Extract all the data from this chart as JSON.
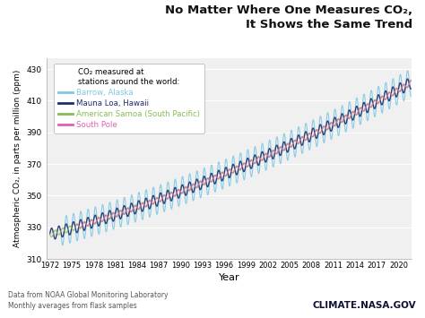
{
  "title_line1": "No Matter Where One Measures CO₂,",
  "title_line2": "It Shows the Same Trend",
  "ylabel": "Atmospheric CO₂, in parts per million (ppm)",
  "xlabel": "Year",
  "ylim": [
    310,
    437
  ],
  "xlim": [
    1971.5,
    2021.8
  ],
  "yticks": [
    310,
    330,
    350,
    370,
    390,
    410,
    430
  ],
  "xticks": [
    1972,
    1975,
    1978,
    1981,
    1984,
    1987,
    1990,
    1993,
    1996,
    1999,
    2002,
    2005,
    2008,
    2011,
    2014,
    2017,
    2020
  ],
  "legend_title": "CO₂ measured at\nstations around the world:",
  "stations": [
    {
      "name": "Barrow, Alaska",
      "color": "#7ec8e3",
      "lw": 0.8,
      "amplitude": 9.0,
      "start_year": 1973.5,
      "phase": 0.0
    },
    {
      "name": "Mauna Loa, Hawaii",
      "color": "#1c2e6e",
      "lw": 1.0,
      "amplitude": 3.8,
      "start_year": 1972.0,
      "phase": 0.15
    },
    {
      "name": "American Samoa (South Pacific)",
      "color": "#88bb55",
      "lw": 0.8,
      "amplitude": 1.8,
      "start_year": 1972.0,
      "phase": 3.3
    },
    {
      "name": "South Pole",
      "color": "#e060b0",
      "lw": 0.8,
      "amplitude": 1.4,
      "start_year": 1975.5,
      "phase": 3.5
    }
  ],
  "footnote1": "Data from NOAA Global Monitoring Laboratory",
  "footnote2": "Monthly averages from flask samples",
  "watermark": "CLIMATE.NASA.GOV",
  "bg_color": "#ffffff",
  "plot_bg_color": "#f0f0f0",
  "legend_box_color": "#ffffff",
  "grid_color": "#ffffff",
  "trend_base": 325.5,
  "trend_linear": 1.28,
  "trend_quad": 0.013
}
